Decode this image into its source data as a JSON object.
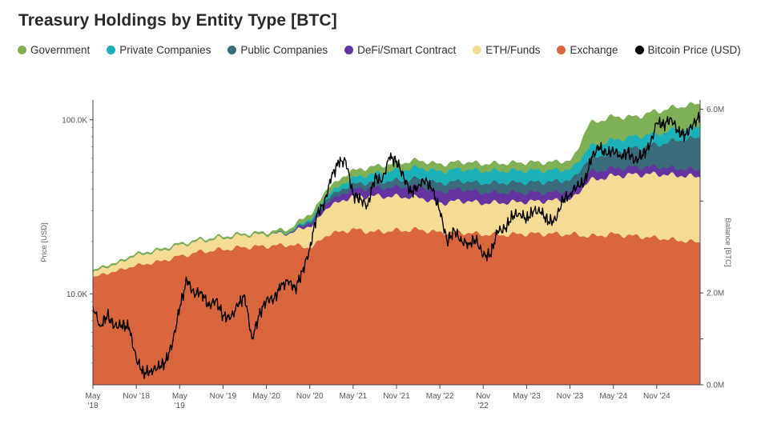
{
  "chart_data": {
    "type": "area",
    "title": "Treasury Holdings by Entity Type [BTC]",
    "colors": {
      "Government": "#7fb055",
      "Private Companies": "#1cb1b8",
      "Public Companies": "#3a6b7a",
      "DeFi/Smart Contract": "#6435a0",
      "ETH/Funds": "#f4dc95",
      "Exchange": "#d9663c",
      "Bitcoin Price (USD)": "#000000"
    },
    "legend": [
      "Government",
      "Private Companies",
      "Public Companies",
      "DeFi/Smart Contract",
      "ETH/Funds",
      "Exchange",
      "Bitcoin Price (USD)"
    ],
    "legend_position": "top-left",
    "x_ticks": [
      [
        "May",
        "'18"
      ],
      [
        "Nov '18"
      ],
      [
        "May",
        "'19"
      ],
      [
        "Nov '19"
      ],
      [
        "May '20"
      ],
      [
        "Nov '20"
      ],
      [
        "May '21"
      ],
      [
        "Nov '21"
      ],
      [
        "May '22"
      ],
      [
        "Nov",
        "'22"
      ],
      [
        "May '23"
      ],
      [
        "Nov '23"
      ],
      [
        "May '24"
      ],
      [
        "Nov '24"
      ]
    ],
    "x_tick_dates": [
      "2018-05",
      "2018-11",
      "2019-05",
      "2019-11",
      "2020-05",
      "2020-11",
      "2021-05",
      "2021-11",
      "2022-05",
      "2022-11",
      "2023-05",
      "2023-11",
      "2024-05",
      "2024-11"
    ],
    "x_range": [
      "2018-05",
      "2025-05"
    ],
    "y_left": {
      "label": "Price [USD]",
      "scale": "log",
      "range": [
        3000,
        130000
      ],
      "ticks": [
        "10.0K",
        "100.0K"
      ],
      "tick_values": [
        10000,
        100000
      ]
    },
    "y_right": {
      "label": "Balance [BTC]",
      "scale": "linear",
      "range": [
        0,
        6200000
      ],
      "ticks": [
        "0.0M",
        "",
        "2.0M",
        "",
        "6.0M"
      ],
      "tick_values": [
        0,
        1000000,
        2000000,
        4000000,
        6000000
      ]
    },
    "stack_dates": [
      "2018-05",
      "2018-08",
      "2018-11",
      "2019-02",
      "2019-05",
      "2019-08",
      "2019-11",
      "2020-02",
      "2020-05",
      "2020-08",
      "2020-11",
      "2021-02",
      "2021-05",
      "2021-08",
      "2021-11",
      "2022-02",
      "2022-05",
      "2022-08",
      "2022-11",
      "2023-02",
      "2023-05",
      "2023-08",
      "2023-11",
      "2024-02",
      "2024-05",
      "2024-08",
      "2024-11",
      "2025-02",
      "2025-05"
    ],
    "series": [
      {
        "name": "Exchange",
        "values": [
          2350000,
          2470000,
          2600000,
          2680000,
          2800000,
          2900000,
          2950000,
          3000000,
          3020000,
          3050000,
          3000000,
          3300000,
          3380000,
          3330000,
          3360000,
          3380000,
          3320000,
          3320000,
          3280000,
          3270000,
          3290000,
          3290000,
          3280000,
          3240000,
          3280000,
          3240000,
          3200000,
          3150000,
          3100000
        ]
      },
      {
        "name": "ETH/Funds",
        "values": [
          120000,
          150000,
          220000,
          230000,
          240000,
          240000,
          250000,
          260000,
          260000,
          250000,
          460000,
          620000,
          720000,
          780000,
          740000,
          700000,
          640000,
          690000,
          680000,
          700000,
          700000,
          720000,
          760000,
          1220000,
          1270000,
          1340000,
          1390000,
          1410000,
          1430000
        ]
      },
      {
        "name": "DeFi/Smart Contract",
        "values": [
          0,
          0,
          0,
          0,
          0,
          0,
          0,
          0,
          0,
          10000,
          60000,
          120000,
          160000,
          180000,
          200000,
          240000,
          250000,
          250000,
          230000,
          220000,
          200000,
          180000,
          180000,
          180000,
          170000,
          160000,
          160000,
          150000,
          150000
        ]
      },
      {
        "name": "Public Companies",
        "values": [
          0,
          0,
          0,
          0,
          0,
          0,
          0,
          0,
          0,
          10000,
          50000,
          100000,
          110000,
          130000,
          150000,
          170000,
          180000,
          180000,
          200000,
          210000,
          220000,
          230000,
          240000,
          300000,
          350000,
          420000,
          480000,
          620000,
          700000
        ]
      },
      {
        "name": "Private Companies",
        "values": [
          0,
          0,
          0,
          0,
          0,
          0,
          0,
          0,
          0,
          10000,
          40000,
          80000,
          140000,
          180000,
          220000,
          240000,
          260000,
          260000,
          270000,
          260000,
          260000,
          250000,
          240000,
          260000,
          260000,
          250000,
          240000,
          240000,
          240000
        ]
      },
      {
        "name": "Government",
        "values": [
          30000,
          30000,
          30000,
          30000,
          30000,
          30000,
          30000,
          30000,
          40000,
          60000,
          100000,
          130000,
          150000,
          150000,
          150000,
          150000,
          150000,
          150000,
          150000,
          160000,
          170000,
          170000,
          180000,
          500000,
          500000,
          420000,
          480000,
          480000,
          500000
        ]
      }
    ],
    "price_series": {
      "name": "Bitcoin Price (USD)",
      "dates": [
        "2018-05",
        "2018-06",
        "2018-07",
        "2018-08",
        "2018-09",
        "2018-10",
        "2018-11",
        "2018-12",
        "2019-01",
        "2019-02",
        "2019-03",
        "2019-04",
        "2019-05",
        "2019-06",
        "2019-07",
        "2019-08",
        "2019-09",
        "2019-10",
        "2019-11",
        "2019-12",
        "2020-01",
        "2020-02",
        "2020-03",
        "2020-04",
        "2020-05",
        "2020-06",
        "2020-07",
        "2020-08",
        "2020-09",
        "2020-10",
        "2020-11",
        "2020-12",
        "2021-01",
        "2021-02",
        "2021-03",
        "2021-04",
        "2021-05",
        "2021-06",
        "2021-07",
        "2021-08",
        "2021-09",
        "2021-10",
        "2021-11",
        "2021-12",
        "2022-01",
        "2022-02",
        "2022-03",
        "2022-04",
        "2022-05",
        "2022-06",
        "2022-07",
        "2022-08",
        "2022-09",
        "2022-10",
        "2022-11",
        "2022-12",
        "2023-01",
        "2023-02",
        "2023-03",
        "2023-04",
        "2023-05",
        "2023-06",
        "2023-07",
        "2023-08",
        "2023-09",
        "2023-10",
        "2023-11",
        "2023-12",
        "2024-01",
        "2024-02",
        "2024-03",
        "2024-04",
        "2024-05",
        "2024-06",
        "2024-07",
        "2024-08",
        "2024-09",
        "2024-10",
        "2024-11",
        "2024-12",
        "2025-01",
        "2025-02",
        "2025-03",
        "2025-04",
        "2025-05"
      ],
      "values": [
        8500,
        6500,
        7500,
        6500,
        6600,
        6400,
        4200,
        3500,
        3600,
        3800,
        4000,
        5200,
        8300,
        12000,
        10000,
        10300,
        8500,
        9200,
        7500,
        7200,
        8500,
        9800,
        5500,
        7500,
        9300,
        9300,
        11000,
        11800,
        10700,
        13500,
        18000,
        29000,
        33000,
        47000,
        57000,
        58000,
        37000,
        35000,
        32000,
        47000,
        44000,
        61000,
        58000,
        47000,
        38000,
        42000,
        45500,
        39000,
        30000,
        20000,
        23000,
        20000,
        19500,
        20500,
        16500,
        16800,
        23000,
        23500,
        28000,
        29000,
        27000,
        30000,
        29500,
        26000,
        26500,
        34500,
        37500,
        42000,
        43000,
        61000,
        70000,
        63000,
        67000,
        62000,
        65000,
        58000,
        63000,
        70000,
        96000,
        94000,
        102000,
        85000,
        82000,
        94000,
        105000
      ]
    }
  }
}
